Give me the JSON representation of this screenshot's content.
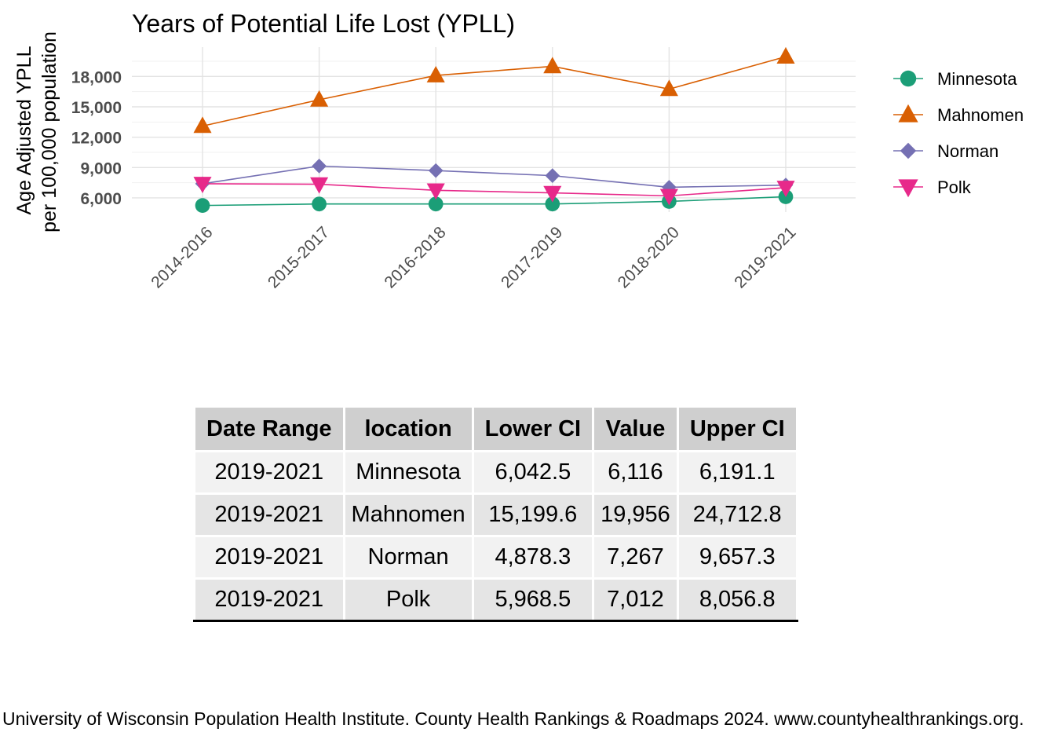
{
  "chart_data": {
    "type": "line",
    "title": "Years of Potential Life Lost (YPLL)",
    "ylabel_lines": [
      "Age Adjusted YPLL",
      "per 100,000 population"
    ],
    "xlabel": "",
    "categories": [
      "2014-2016",
      "2015-2017",
      "2016-2018",
      "2017-2019",
      "2018-2020",
      "2019-2021"
    ],
    "y_ticks": [
      6000,
      9000,
      12000,
      15000,
      18000
    ],
    "y_tick_labels": [
      "6,000",
      "9,000",
      "12,000",
      "15,000",
      "18,000"
    ],
    "ylim": [
      4600,
      20900
    ],
    "grid": true,
    "legend_position": "right",
    "series": [
      {
        "name": "Minnesota",
        "color": "#1b9e77",
        "marker": "circle",
        "values": [
          5250,
          5400,
          5400,
          5400,
          5650,
          6116
        ]
      },
      {
        "name": "Mahnomen",
        "color": "#d95f02",
        "marker": "triangle-up",
        "values": [
          13100,
          15700,
          18100,
          19000,
          16750,
          19956
        ]
      },
      {
        "name": "Norman",
        "color": "#7570b3",
        "marker": "diamond",
        "values": [
          7400,
          9150,
          8700,
          8200,
          7050,
          7267
        ]
      },
      {
        "name": "Polk",
        "color": "#e7298a",
        "marker": "triangle-down",
        "values": [
          7400,
          7350,
          6750,
          6500,
          6200,
          7012
        ]
      }
    ]
  },
  "table": {
    "headers": [
      "Date Range",
      "location",
      "Lower CI",
      "Value",
      "Upper CI"
    ],
    "rows": [
      [
        "2019-2021",
        "Minnesota",
        "6,042.5",
        "6,116",
        "6,191.1"
      ],
      [
        "2019-2021",
        "Mahnomen",
        "15,199.6",
        "19,956",
        "24,712.8"
      ],
      [
        "2019-2021",
        "Norman",
        "4,878.3",
        "7,267",
        "9,657.3"
      ],
      [
        "2019-2021",
        "Polk",
        "5,968.5",
        "7,012",
        "8,056.8"
      ]
    ]
  },
  "source_text": "University of Wisconsin Population Health Institute. County Health Rankings & Roadmaps 2024. www.countyhealthrankings.org."
}
